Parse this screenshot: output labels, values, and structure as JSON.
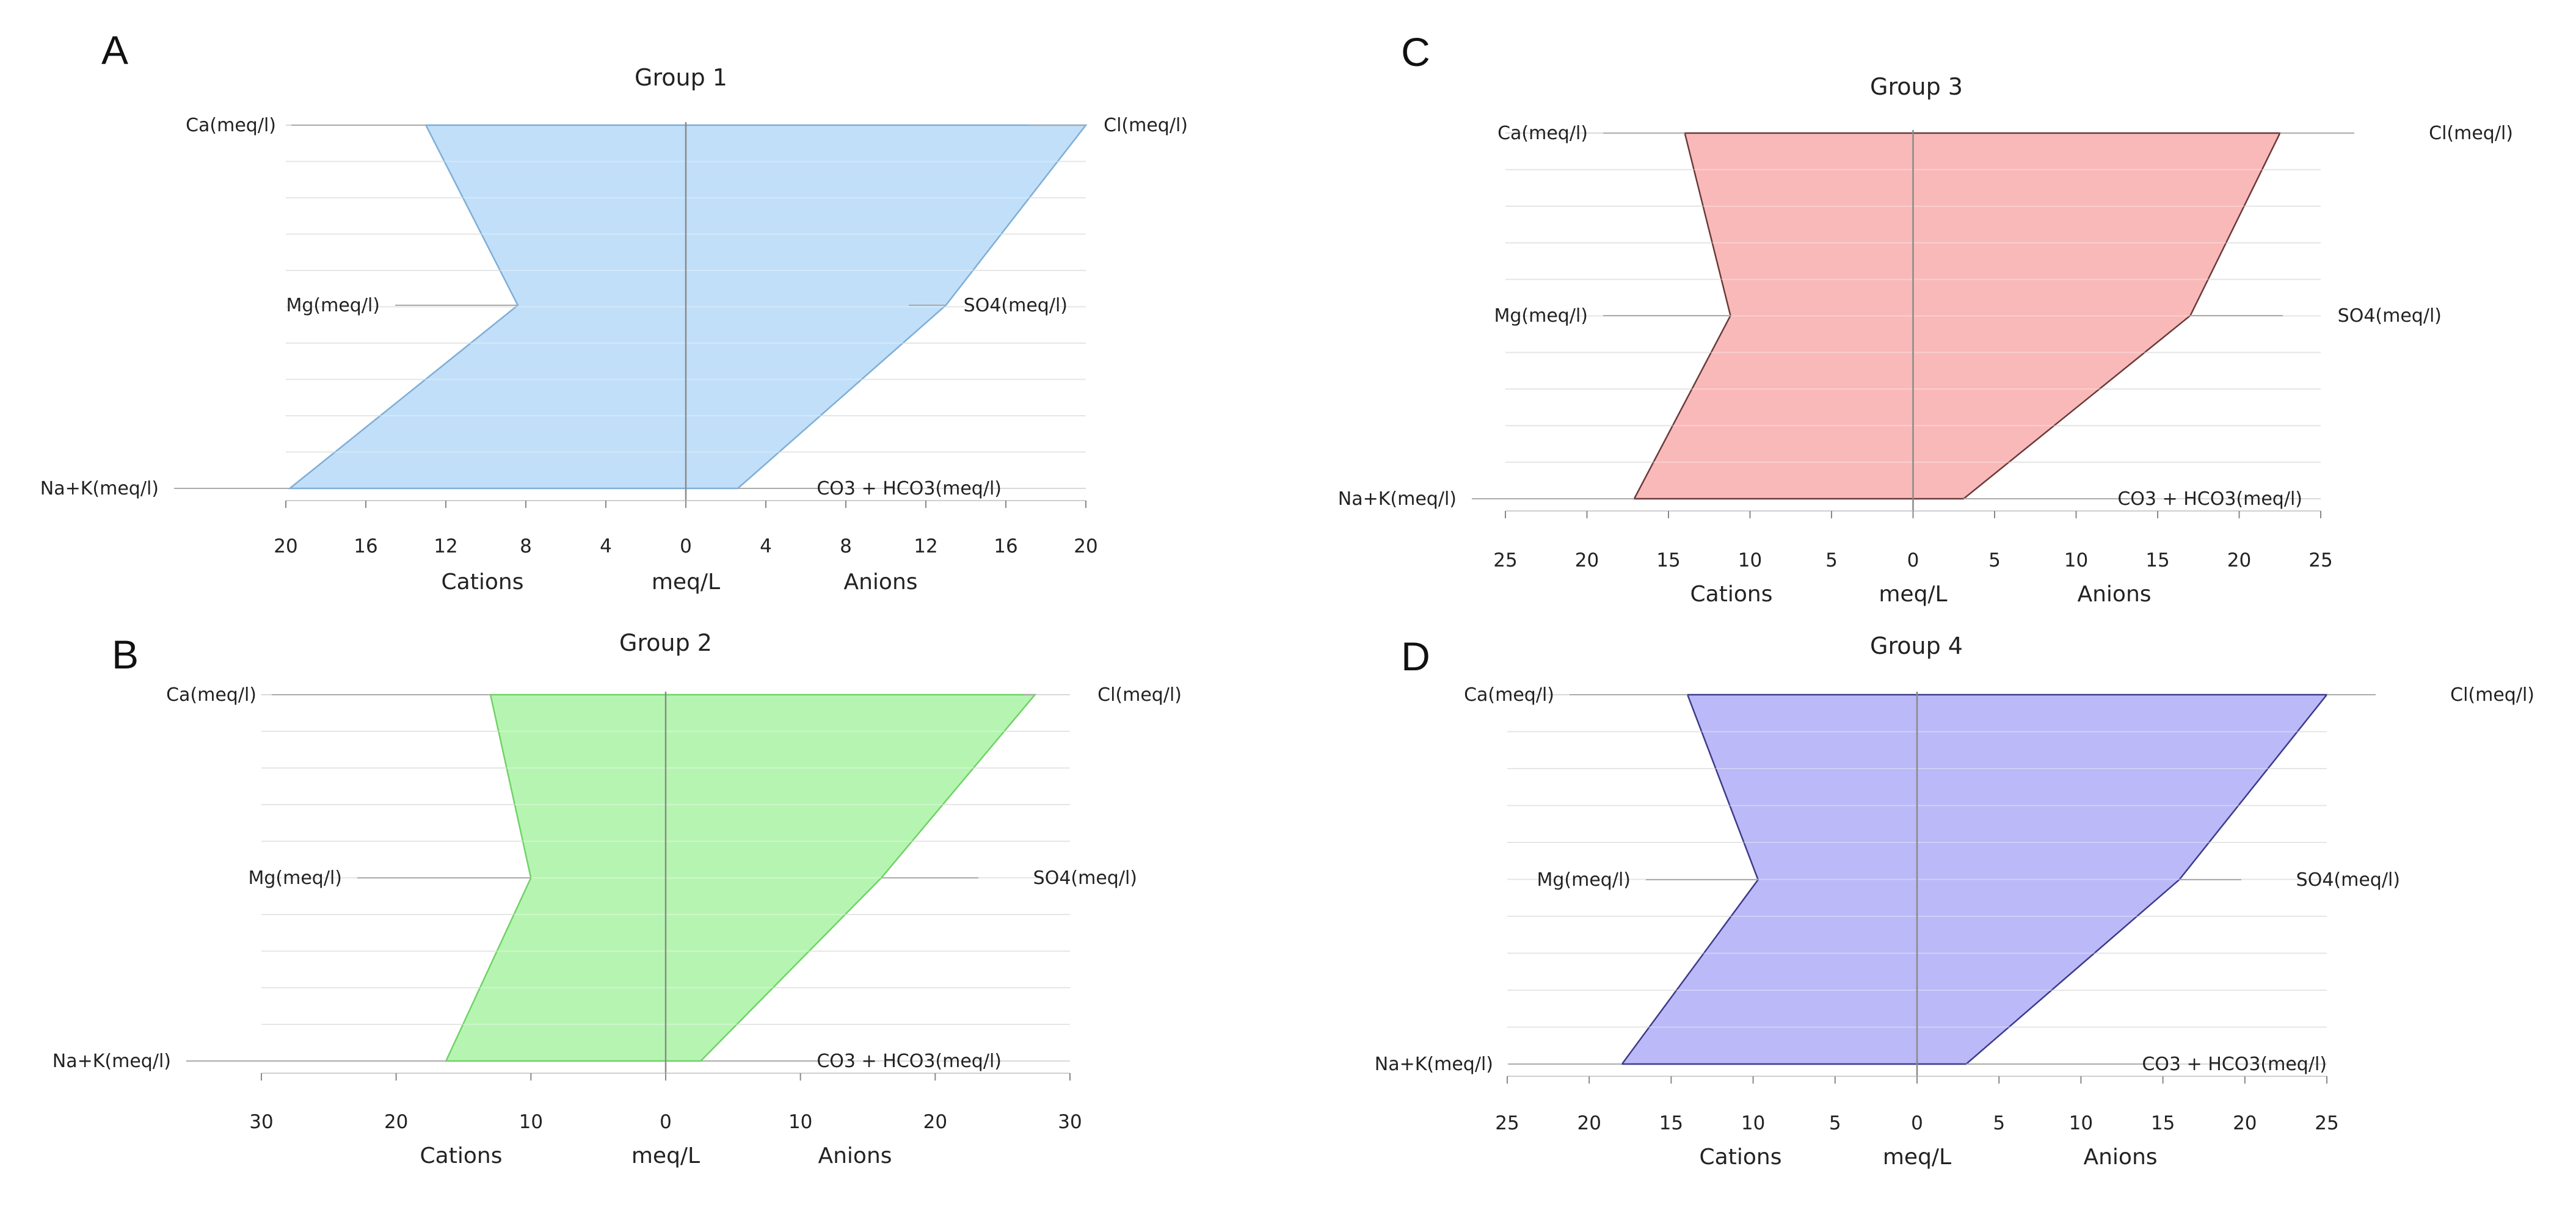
{
  "colors": {
    "group1_fill": "#bcdcf9",
    "group1_stroke": "#7eaed6",
    "group2_fill": "#b0f4aa",
    "group2_stroke": "#6fd266",
    "group3_fill": "#f9b3b3",
    "group3_stroke": "#6a3a3a",
    "group4_fill": "#b5b3f6",
    "group4_stroke": "#3d3a8a",
    "gridline": "#d9d9d9",
    "center_axis": "#8a8a8a"
  },
  "chart_data": [
    {
      "panel_label": "A",
      "type": "area",
      "chart_kind": "stiff diagram",
      "title": "Group 1",
      "ylabel": "",
      "xlabel_left": "Cations",
      "xlabel_center": "meq/L",
      "xlabel_right": "Anions",
      "xlim": [
        -20,
        20
      ],
      "ticks": [
        -20,
        -16,
        -12,
        -8,
        -4,
        0,
        4,
        8,
        12,
        16,
        20
      ],
      "tick_labels": [
        "20",
        "16",
        "12",
        "8",
        "4",
        "0",
        "4",
        "8",
        "12",
        "16",
        "20"
      ],
      "cation_labels": [
        "Ca(meq/l)",
        "Mg(meq/l)",
        "Na+K(meq/l)"
      ],
      "anion_labels": [
        "Cl(meq/l)",
        "SO4(meq/l)",
        "CO3 + HCO3(meq/l)"
      ],
      "cations": [
        13,
        8.4,
        19.8
      ],
      "anions": [
        20,
        13,
        2.6
      ],
      "fill_color_key": "group1_fill",
      "stroke_color_key": "group1_stroke"
    },
    {
      "panel_label": "B",
      "type": "area",
      "chart_kind": "stiff diagram",
      "title": "Group 2",
      "ylabel": "",
      "xlabel_left": "Cations",
      "xlabel_center": "meq/L",
      "xlabel_right": "Anions",
      "xlim": [
        -30,
        30
      ],
      "ticks": [
        -30,
        -20,
        -10,
        0,
        10,
        20,
        30
      ],
      "tick_labels": [
        "30",
        "20",
        "10",
        "0",
        "10",
        "20",
        "30"
      ],
      "cation_labels": [
        "Ca(meq/l)",
        "Mg(meq/l)",
        "Na+K(meq/l)"
      ],
      "anion_labels": [
        "Cl(meq/l)",
        "SO4(meq/l)",
        "CO3 + HCO3(meq/l)"
      ],
      "cations": [
        13,
        10,
        16.3
      ],
      "anions": [
        27.4,
        16,
        2.6
      ],
      "fill_color_key": "group2_fill",
      "stroke_color_key": "group2_stroke"
    },
    {
      "panel_label": "C",
      "type": "area",
      "chart_kind": "stiff diagram",
      "title": "Group 3",
      "ylabel": "",
      "xlabel_left": "Cations",
      "xlabel_center": "meq/L",
      "xlabel_right": "Anions",
      "xlim": [
        -25,
        25
      ],
      "ticks": [
        -25,
        -20,
        -15,
        -10,
        -5,
        0,
        5,
        10,
        15,
        20,
        25
      ],
      "tick_labels": [
        "25",
        "20",
        "15",
        "10",
        "5",
        "0",
        "5",
        "10",
        "15",
        "20",
        "25"
      ],
      "cation_labels": [
        "Ca(meq/l)",
        "Mg(meq/l)",
        "Na+K(meq/l)"
      ],
      "anion_labels": [
        "Cl(meq/l)",
        "SO4(meq/l)",
        "CO3 + HCO3(meq/l)"
      ],
      "cations": [
        14,
        11.2,
        17.1
      ],
      "anions": [
        22.5,
        17,
        3.1
      ],
      "fill_color_key": "group3_fill",
      "stroke_color_key": "group3_stroke"
    },
    {
      "panel_label": "D",
      "type": "area",
      "chart_kind": "stiff diagram",
      "title": "Group 4",
      "ylabel": "",
      "xlabel_left": "Cations",
      "xlabel_center": "meq/L",
      "xlabel_right": "Anions",
      "xlim": [
        -25,
        25
      ],
      "ticks": [
        -25,
        -20,
        -15,
        -10,
        -5,
        0,
        5,
        10,
        15,
        20,
        25
      ],
      "tick_labels": [
        "25",
        "20",
        "15",
        "10",
        "5",
        "0",
        "5",
        "10",
        "15",
        "20",
        "25"
      ],
      "cation_labels": [
        "Ca(meq/l)",
        "Mg(meq/l)",
        "Na+K(meq/l)"
      ],
      "anion_labels": [
        "Cl(meq/l)",
        "SO4(meq/l)",
        "CO3 + HCO3(meq/l)"
      ],
      "cations": [
        14,
        9.7,
        18
      ],
      "anions": [
        25,
        16,
        3
      ],
      "fill_color_key": "group4_fill",
      "stroke_color_key": "group4_stroke"
    }
  ]
}
